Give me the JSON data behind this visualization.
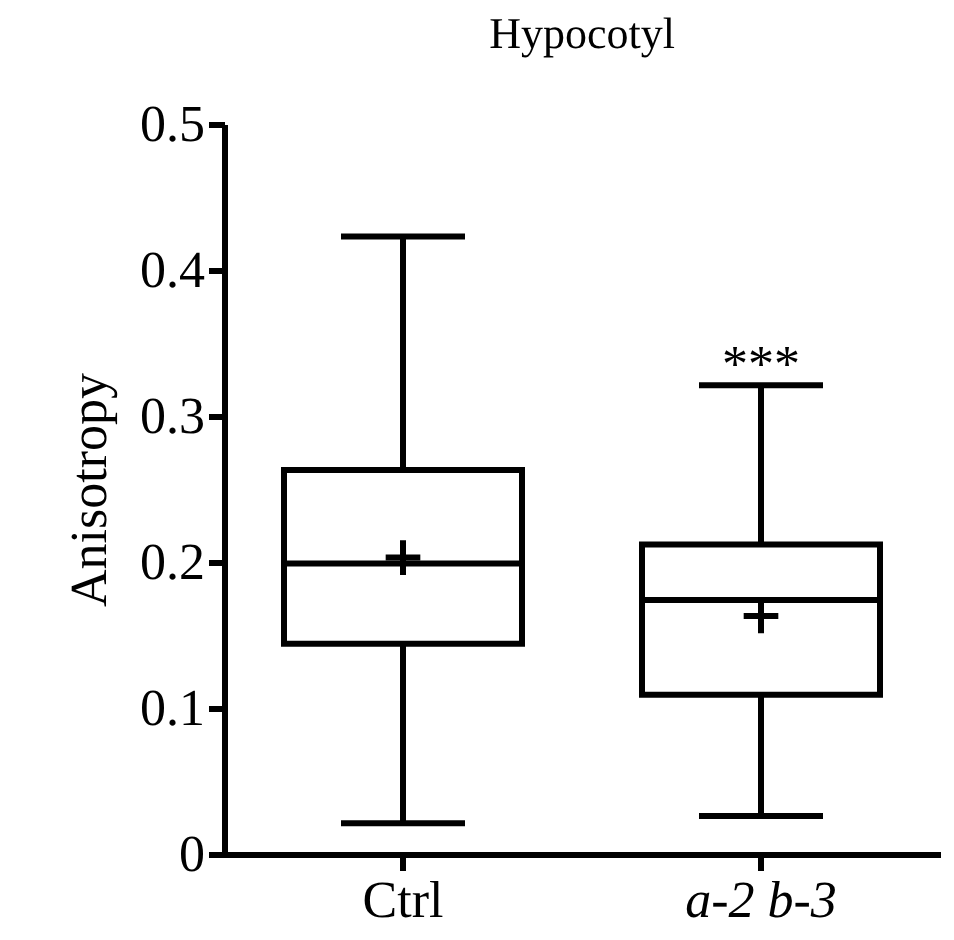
{
  "chart_data": {
    "type": "box",
    "title": "Hypocotyl",
    "ylabel": "Anisotropy",
    "categories": [
      "Ctrl",
      "a-2 b-3"
    ],
    "boxes": [
      {
        "low": 0.021,
        "q1": 0.144,
        "median": 0.199,
        "q3": 0.263,
        "high": 0.423,
        "mean": 0.203
      },
      {
        "low": 0.026,
        "q1": 0.109,
        "median": 0.174,
        "q3": 0.212,
        "high": 0.321,
        "mean": 0.163
      }
    ],
    "ylim": [
      0,
      0.5
    ],
    "yticks": [
      0,
      0.1,
      0.2,
      0.3,
      0.4,
      0.5
    ],
    "annotations": [
      "***"
    ]
  }
}
